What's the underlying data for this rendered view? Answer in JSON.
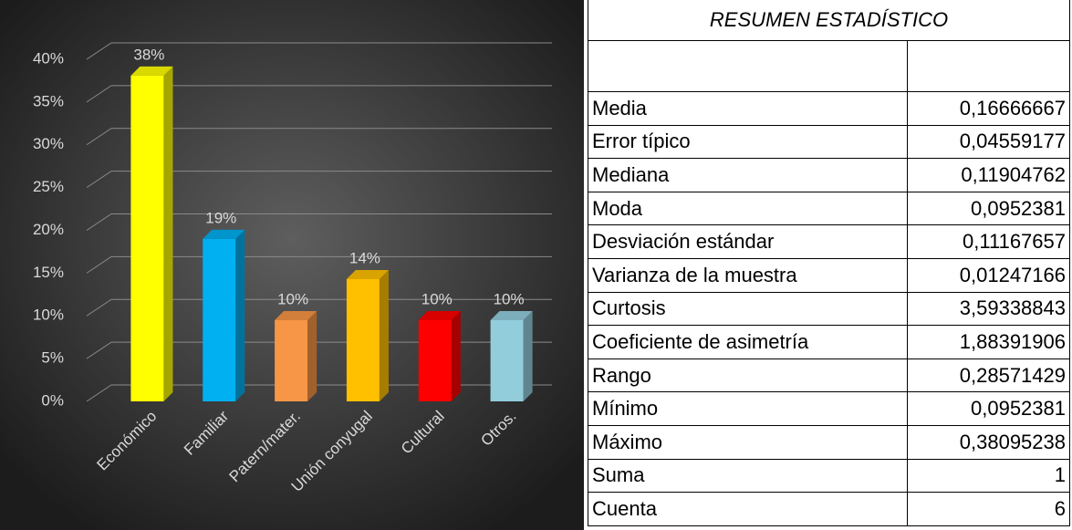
{
  "chart_data": {
    "type": "bar3d",
    "categories": [
      "Económico",
      "Familiar",
      "Patern/mater.",
      "Unión conyugal",
      "Cultural",
      "Otros."
    ],
    "values": [
      38.1,
      19,
      9.5,
      14.3,
      9.5,
      9.5
    ],
    "value_labels": [
      "38%",
      "19%",
      "10%",
      "14%",
      "10%",
      "10%"
    ],
    "colors": [
      "#ffff00",
      "#00b0f0",
      "#f79646",
      "#ffc000",
      "#ff0000",
      "#92cddc"
    ],
    "ylim": [
      0,
      40
    ],
    "yticks": [
      {
        "value": 0,
        "label": "0%"
      },
      {
        "value": 5,
        "label": "5%"
      },
      {
        "value": 10,
        "label": "10%"
      },
      {
        "value": 15,
        "label": "15%"
      },
      {
        "value": 20,
        "label": "20%"
      },
      {
        "value": 25,
        "label": "25%"
      },
      {
        "value": 30,
        "label": "30%"
      },
      {
        "value": 35,
        "label": "35%"
      },
      {
        "value": 40,
        "label": "40%"
      }
    ],
    "grid": true
  },
  "table": {
    "title": "RESUMEN ESTADÍSTICO",
    "rows": [
      [
        "Media",
        "0,16666667"
      ],
      [
        "Error típico",
        "0,04559177"
      ],
      [
        "Mediana",
        "0,11904762"
      ],
      [
        "Moda",
        "0,0952381"
      ],
      [
        "Desviación estándar",
        "0,11167657"
      ],
      [
        "Varianza de la muestra",
        "0,01247166"
      ],
      [
        "Curtosis",
        "3,59338843"
      ],
      [
        "Coeficiente de asimetría",
        "1,88391906"
      ],
      [
        "Rango",
        "0,28571429"
      ],
      [
        "Mínimo",
        "0,0952381"
      ],
      [
        "Máximo",
        "0,38095238"
      ],
      [
        "Suma",
        "1"
      ],
      [
        "Cuenta",
        "6"
      ]
    ]
  }
}
